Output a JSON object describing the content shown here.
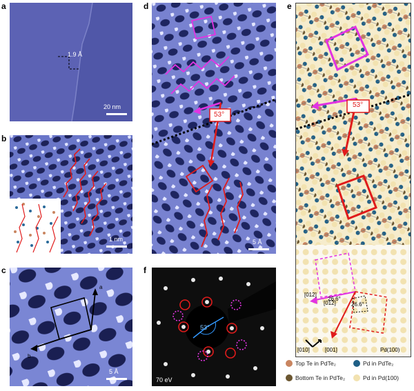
{
  "panels": {
    "a": {
      "letter": "a",
      "step_label": "1.9 Å",
      "scale": "20 nm"
    },
    "b": {
      "letter": "b",
      "scale": "1 nm"
    },
    "c": {
      "letter": "c",
      "scale": "5 Å",
      "axis_a": "a",
      "axis_b": "b"
    },
    "d": {
      "letter": "d",
      "scale": "5 Å",
      "angle": "53°"
    },
    "e": {
      "letter": "e",
      "angle": "53°",
      "dir_012": "[012]",
      "dir_012bar": "[01̅2]",
      "dir_010": "[010]",
      "dir_001": "[001]",
      "angle1": "26.6°",
      "angle2": "26.6°",
      "substrate": "Pd(100)"
    },
    "f": {
      "letter": "f",
      "angle": "53°",
      "energy": "70 eV"
    }
  },
  "legend": [
    {
      "label": "Top Te in PdTe₂",
      "color": "#c98560"
    },
    {
      "label": "Pd in PdTe₂",
      "color": "#1f5f86"
    },
    {
      "label": "Bottom Te in PdTe₂",
      "color": "#6b5630"
    },
    {
      "label": "Pd in Pd(100)",
      "color": "#f2e2b0"
    }
  ],
  "colors": {
    "magenta": "#e233e2",
    "red": "#e01b1b",
    "stm": "#5a64b8"
  }
}
